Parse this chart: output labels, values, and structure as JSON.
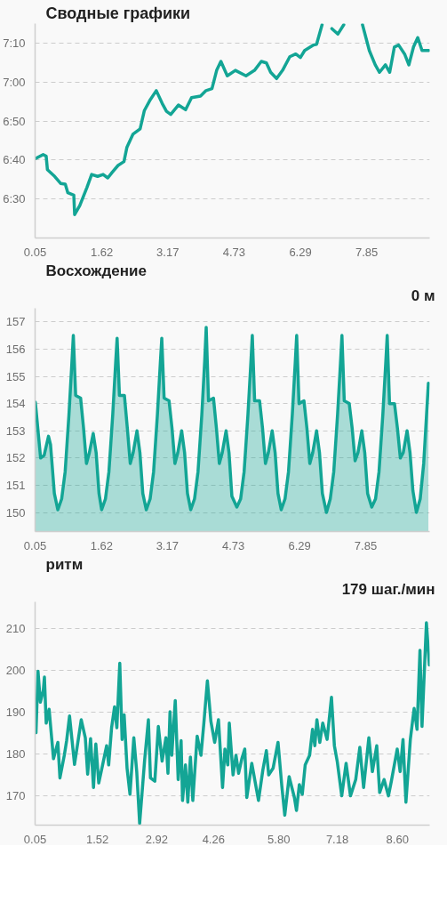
{
  "chart_data": [
    {
      "type": "line",
      "title": "Сводные графики",
      "grid": "y",
      "xlim": [
        0.05,
        9.33
      ],
      "xticks": [
        0.05,
        1.62,
        3.17,
        4.73,
        6.29,
        7.85
      ],
      "ylim": [
        380,
        435
      ],
      "yticks": [
        {
          "value": 390,
          "label": "6:30"
        },
        {
          "value": 400,
          "label": "6:40"
        },
        {
          "value": 410,
          "label": "6:50"
        },
        {
          "value": 420,
          "label": "7:00"
        },
        {
          "value": 430,
          "label": "7:10"
        }
      ],
      "x": [
        0.05,
        0.24,
        0.31,
        0.34,
        0.51,
        0.65,
        0.76,
        0.82,
        0.96,
        0.98,
        1.1,
        1.27,
        1.38,
        1.52,
        1.65,
        1.76,
        1.86,
        2.0,
        2.14,
        2.21,
        2.35,
        2.52,
        2.62,
        2.76,
        2.9,
        3.04,
        3.14,
        3.24,
        3.42,
        3.59,
        3.73,
        3.94,
        4.07,
        4.21,
        4.32,
        4.42,
        4.57,
        4.76,
        5.01,
        5.21,
        5.37,
        5.49,
        5.59,
        5.73,
        5.87,
        6.04,
        6.18,
        6.29,
        6.39,
        6.6,
        6.67,
        6.8,
        6.9,
        7.03,
        7.17,
        7.31,
        7.5,
        7.75,
        7.91,
        8.05,
        8.15,
        8.29,
        8.39,
        8.5,
        8.6,
        8.74,
        8.84,
        8.95,
        9.05,
        9.15,
        9.31
      ],
      "series": [
        {
          "color": "#13a595",
          "values": [
            400.3,
            401.4,
            401,
            397.5,
            395.8,
            394,
            393.8,
            391.6,
            391,
            386,
            388.3,
            393,
            396.3,
            395.8,
            396.3,
            395.4,
            396.8,
            398.6,
            399.6,
            403.3,
            406.6,
            408,
            412.7,
            415.5,
            417.8,
            414.5,
            412.5,
            411.7,
            414.1,
            412.9,
            416,
            416.4,
            417.8,
            418.3,
            423,
            425.3,
            421.6,
            423,
            421.6,
            423,
            425.3,
            424.9,
            422.5,
            420.9,
            423,
            426.5,
            427.2,
            426.3,
            428.1,
            429.5,
            429.7,
            434.7,
            null,
            433.7,
            432.3,
            434.7,
            null,
            434.7,
            428.1,
            424.4,
            422.5,
            424.4,
            422.5,
            429,
            429.5,
            427.2,
            424.4,
            429,
            431.4,
            428.1,
            428.1
          ]
        }
      ]
    },
    {
      "type": "area",
      "title": "Восхождение",
      "subtitle": "0 м",
      "grid": "y",
      "xlim": [
        0.05,
        9.36
      ],
      "xticks": [
        0.05,
        1.62,
        3.17,
        4.73,
        6.29,
        7.85
      ],
      "ylim": [
        149.3,
        157.5
      ],
      "yticks": [
        150,
        151,
        152,
        153,
        154,
        155,
        156,
        157
      ],
      "x": [
        0.056,
        0.18,
        0.263,
        0.366,
        0.414,
        0.504,
        0.587,
        0.677,
        0.759,
        0.849,
        0.918,
        0.952,
        1.007,
        1.124,
        1.193,
        1.262,
        1.331,
        1.421,
        1.49,
        1.558,
        1.62,
        1.71,
        1.792,
        1.882,
        1.951,
        1.985,
        2.04,
        2.157,
        2.226,
        2.295,
        2.364,
        2.454,
        2.523,
        2.591,
        2.674,
        2.764,
        2.846,
        2.936,
        3.005,
        3.039,
        3.094,
        3.211,
        3.28,
        3.349,
        3.418,
        3.508,
        3.577,
        3.645,
        3.722,
        3.812,
        3.894,
        3.984,
        4.053,
        4.087,
        4.142,
        4.259,
        4.328,
        4.397,
        4.466,
        4.556,
        4.625,
        4.693,
        4.81,
        4.9,
        4.982,
        5.072,
        5.141,
        5.175,
        5.23,
        5.347,
        5.416,
        5.485,
        5.554,
        5.644,
        5.713,
        5.781,
        5.857,
        5.947,
        6.029,
        6.119,
        6.188,
        6.222,
        6.277,
        6.394,
        6.463,
        6.532,
        6.601,
        6.691,
        6.76,
        6.828,
        6.925,
        7.015,
        7.097,
        7.187,
        7.256,
        7.29,
        7.345,
        7.462,
        7.531,
        7.6,
        7.669,
        7.759,
        7.828,
        7.896,
        7.993,
        8.083,
        8.165,
        8.255,
        8.324,
        8.358,
        8.413,
        8.53,
        8.599,
        8.668,
        8.737,
        8.827,
        8.896,
        8.964,
        9.047,
        9.137,
        9.219,
        9.33
      ],
      "series": [
        {
          "color": "#13a595",
          "values": [
            154.05,
            152.0,
            152.1,
            152.8,
            152.5,
            150.7,
            150.1,
            150.5,
            151.5,
            153.6,
            155.5,
            156.5,
            154.3,
            154.2,
            153.1,
            151.8,
            152.2,
            152.9,
            152.2,
            150.7,
            150.1,
            150.5,
            151.5,
            153.6,
            155.5,
            156.4,
            154.3,
            154.3,
            153.1,
            151.8,
            152.2,
            153.0,
            152.2,
            150.7,
            150.1,
            150.5,
            151.5,
            153.6,
            155.5,
            156.4,
            154.2,
            154.1,
            153.1,
            151.8,
            152.2,
            153.0,
            152.2,
            150.7,
            150.1,
            150.5,
            151.5,
            153.6,
            155.6,
            156.8,
            154.1,
            154.2,
            153.1,
            151.8,
            152.2,
            153.0,
            152.2,
            150.6,
            150.2,
            150.5,
            151.5,
            153.6,
            155.5,
            156.5,
            154.1,
            154.1,
            153.1,
            151.8,
            152.2,
            153.0,
            152.2,
            150.7,
            150.1,
            150.5,
            151.5,
            153.6,
            155.5,
            156.5,
            154.0,
            154.1,
            153.1,
            151.8,
            152.2,
            153.0,
            152.2,
            150.7,
            150.0,
            150.5,
            151.5,
            153.6,
            155.5,
            156.5,
            154.1,
            154.0,
            153.1,
            151.9,
            152.2,
            153.0,
            152.2,
            150.7,
            150.2,
            150.5,
            151.5,
            153.6,
            155.5,
            156.5,
            154.0,
            154.0,
            153.1,
            152.0,
            152.2,
            153.0,
            152.2,
            150.8,
            150.0,
            150.5,
            151.8,
            154.75
          ]
        }
      ]
    },
    {
      "type": "line",
      "title": "ритм",
      "subtitle": "179 шаг./мин",
      "grid": "y",
      "xlim": [
        0.05,
        9.36
      ],
      "xticks": [
        0.05,
        1.52,
        2.92,
        4.26,
        {
          "value": 5.8,
          "label": "5.80"
        },
        7.18,
        {
          "value": 8.6,
          "label": "8.60"
        }
      ],
      "ylim": [
        163,
        216.4
      ],
      "yticks": [
        170,
        180,
        190,
        200,
        210
      ],
      "x": [
        0.071,
        0.119,
        0.174,
        0.243,
        0.27,
        0.312,
        0.381,
        0.484,
        0.587,
        0.636,
        0.739,
        0.794,
        0.863,
        0.98,
        1.139,
        1.235,
        1.29,
        1.359,
        1.428,
        1.483,
        1.552,
        1.635,
        1.738,
        1.786,
        1.855,
        1.924,
        1.979,
        2.048,
        2.103,
        2.151,
        2.22,
        2.289,
        2.379,
        2.448,
        2.517,
        2.634,
        2.723,
        2.772,
        2.875,
        2.958,
        3.047,
        3.137,
        3.185,
        3.233,
        3.275,
        3.357,
        3.426,
        3.495,
        3.529,
        3.598,
        3.653,
        3.715,
        3.771,
        3.874,
        3.964,
        4.032,
        4.115,
        4.198,
        4.287,
        4.377,
        4.473,
        4.529,
        4.597,
        4.632,
        4.721,
        4.79,
        4.852,
        4.928,
        4.997,
        5.045,
        5.162,
        5.321,
        5.424,
        5.507,
        5.562,
        5.665,
        5.782,
        5.872,
        5.941,
        6.044,
        6.168,
        6.217,
        6.285,
        6.354,
        6.423,
        6.527,
        6.596,
        6.651,
        6.699,
        6.768,
        6.837,
        6.94,
        7.043,
        7.112,
        7.181,
        7.285,
        7.388,
        7.491,
        7.615,
        7.712,
        7.801,
        7.925,
        8.008,
        8.111,
        8.18,
        8.284,
        8.387,
        8.456,
        8.594,
        8.663,
        8.731,
        8.8,
        8.904,
        8.993,
        9.062,
        9.131,
        9.179,
        9.283,
        9.352
      ],
      "series": [
        {
          "color": "#13a595",
          "values": [
            185.1,
            199.8,
            192.4,
            195.2,
            198.4,
            187.4,
            190.7,
            178.9,
            182.8,
            174.3,
            179.7,
            183.2,
            189.1,
            177.5,
            188.2,
            183.9,
            175.2,
            183.7,
            172.0,
            182.4,
            173.1,
            177.0,
            182.0,
            177.4,
            186.3,
            191.3,
            186.3,
            201.7,
            183.5,
            189.4,
            176.6,
            170.4,
            183.9,
            175.8,
            163.4,
            178.5,
            188.2,
            174.3,
            173.5,
            186.6,
            178.3,
            183.9,
            175.4,
            190.1,
            179.7,
            192.8,
            173.9,
            183.2,
            168.9,
            177.4,
            168.5,
            179.3,
            168.9,
            184.3,
            179.7,
            187.4,
            197.5,
            187.8,
            182.8,
            188.2,
            172.0,
            181.2,
            177.4,
            187.4,
            175.0,
            179.7,
            175.4,
            178.9,
            181.2,
            169.6,
            177.8,
            168.9,
            176.2,
            180.8,
            175.0,
            176.6,
            182.8,
            172.3,
            165.4,
            174.6,
            169.6,
            166.5,
            172.7,
            170.4,
            177.4,
            179.7,
            185.9,
            182.0,
            188.2,
            182.8,
            187.4,
            183.5,
            193.6,
            182.0,
            178.1,
            170.0,
            177.8,
            170.0,
            173.9,
            181.6,
            172.0,
            183.9,
            175.8,
            182.0,
            170.8,
            173.9,
            170.0,
            173.5,
            181.2,
            175.8,
            183.5,
            168.5,
            183.5,
            190.9,
            185.9,
            204.8,
            186.6,
            211.4,
            201.3
          ]
        }
      ]
    }
  ]
}
